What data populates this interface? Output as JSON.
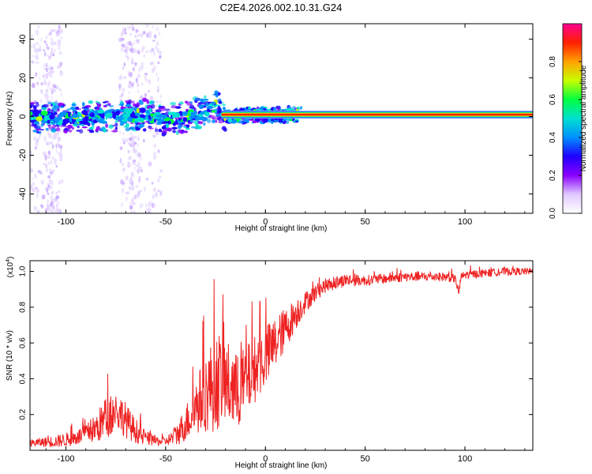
{
  "chart_data": [
    {
      "type": "heatmap",
      "title": "C2E4.2026.002.10.31.G24",
      "xlabel": "Height of straight line (km)",
      "ylabel": "Frequency (Hz)",
      "xlim": [
        -118,
        134
      ],
      "ylim": [
        -50,
        48
      ],
      "xticks": [
        -100,
        -50,
        0,
        50,
        100
      ],
      "yticks": [
        -40,
        -20,
        0,
        20,
        40
      ],
      "colorbar": {
        "label": "Normalized spectral amplitude",
        "range": [
          0,
          1
        ],
        "ticks": [
          0.0,
          0.2,
          0.4,
          0.6,
          0.8
        ],
        "tick_labels": [
          "0.0",
          "0.2",
          "0.4",
          "0.6",
          "0.8"
        ],
        "colormap": [
          "#ffffff",
          "#e0c8ff",
          "#8a00ff",
          "#1e00ff",
          "#0090ff",
          "#00e0d0",
          "#00ff40",
          "#c8ff00",
          "#ffa000",
          "#ff2000",
          "#ff0090"
        ]
      },
      "ridge": {
        "description_free": true,
        "points": [
          [
            -118,
            0
          ],
          [
            -100,
            -1
          ],
          [
            -80,
            0
          ],
          [
            -60,
            1
          ],
          [
            -50,
            -2
          ],
          [
            -40,
            0
          ],
          [
            -30,
            3
          ],
          [
            -25,
            5
          ],
          [
            -20,
            0
          ],
          [
            0,
            1
          ],
          [
            20,
            1
          ],
          [
            60,
            1
          ],
          [
            100,
            1
          ],
          [
            134,
            1
          ]
        ],
        "strong_from_x": -22
      }
    },
    {
      "type": "line",
      "xlabel": "Height of straight line (km)",
      "ylabel": "SNR (10 * v/v)",
      "y_multiplier": "(x10",
      "y_multiplier_exp": "4",
      "y_multiplier_close": ")",
      "xlim": [
        -118,
        134
      ],
      "ylim": [
        0,
        1.06
      ],
      "xticks": [
        -100,
        -50,
        0,
        50,
        100
      ],
      "yticks": [
        0.2,
        0.4,
        0.6,
        0.8,
        1.0
      ],
      "ytick_labels": [
        "0.2",
        "0.4",
        "0.6",
        "0.8",
        "1.0"
      ],
      "series": [
        {
          "name": "SNR",
          "color": "#ee2222",
          "x": [
            -118,
            -105,
            -95,
            -85,
            -80,
            -75,
            -72,
            -68,
            -62,
            -55,
            -50,
            -45,
            -40,
            -35,
            -30,
            -25,
            -22,
            -18,
            -15,
            -10,
            -5,
            0,
            5,
            10,
            15,
            20,
            25,
            30,
            40,
            50,
            60,
            70,
            80,
            90,
            95,
            97,
            98,
            100,
            110,
            120,
            134
          ],
          "y": [
            0.04,
            0.05,
            0.07,
            0.12,
            0.18,
            0.22,
            0.2,
            0.14,
            0.08,
            0.05,
            0.05,
            0.08,
            0.15,
            0.24,
            0.32,
            0.38,
            0.4,
            0.36,
            0.32,
            0.38,
            0.46,
            0.52,
            0.6,
            0.68,
            0.76,
            0.83,
            0.88,
            0.92,
            0.95,
            0.95,
            0.96,
            0.97,
            0.97,
            0.97,
            0.96,
            0.88,
            0.97,
            0.98,
            0.99,
            1.0,
            1.0
          ],
          "noise_envelope": {
            "x": [
              -118,
              -90,
              -80,
              -70,
              -60,
              -50,
              -40,
              -30,
              -25,
              -20,
              -10,
              0,
              10,
              20,
              30,
              50,
              134
            ],
            "amp": [
              0.02,
              0.05,
              0.12,
              0.1,
              0.04,
              0.02,
              0.1,
              0.22,
              0.28,
              0.25,
              0.2,
              0.18,
              0.12,
              0.06,
              0.04,
              0.03,
              0.02
            ]
          }
        }
      ]
    }
  ]
}
